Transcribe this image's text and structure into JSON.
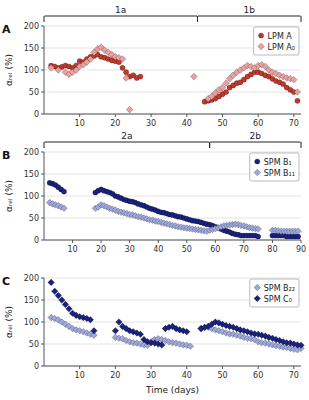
{
  "chart_data": [
    {
      "type": "scatter",
      "title": "A",
      "ylabel": "αᵣₑₗ (%)",
      "xlim": [
        0,
        72
      ],
      "ylim": [
        0,
        200
      ],
      "xticks": [
        10,
        20,
        30,
        40,
        50,
        60,
        70
      ],
      "yticks": [
        0,
        50,
        100,
        150,
        200
      ],
      "grid": true,
      "legend": "upper right",
      "annotations": [
        {
          "text": "1a",
          "x0": 0,
          "x1": 43
        },
        {
          "text": "1b",
          "x0": 43,
          "x1": 72
        }
      ],
      "series": [
        {
          "name": "LPM A",
          "color": "#c0392b",
          "marker": "circle",
          "x": [
            2,
            3,
            4,
            5,
            6,
            7,
            8,
            9,
            10,
            11,
            12,
            13,
            14,
            15,
            16,
            17,
            18,
            19,
            20,
            21,
            22,
            23,
            24,
            25,
            26,
            27,
            45,
            46,
            47,
            48,
            49,
            50,
            51,
            52,
            53,
            54,
            55,
            56,
            57,
            58,
            59,
            60,
            61,
            62,
            63,
            64,
            65,
            66,
            67,
            68,
            69,
            70,
            71
          ],
          "values": [
            110,
            108,
            105,
            107,
            110,
            108,
            105,
            110,
            120,
            118,
            125,
            130,
            132,
            135,
            130,
            128,
            125,
            122,
            120,
            118,
            105,
            95,
            85,
            88,
            82,
            85,
            28,
            30,
            32,
            35,
            40,
            45,
            50,
            60,
            65,
            70,
            72,
            78,
            85,
            90,
            95,
            95,
            92,
            88,
            85,
            80,
            75,
            72,
            68,
            60,
            55,
            50,
            30
          ]
        },
        {
          "name": "LPM A₀",
          "color": "#e8a0a0",
          "marker": "diamond",
          "x": [
            2,
            4,
            6,
            7,
            8,
            9,
            10,
            11,
            12,
            13,
            14,
            15,
            16,
            17,
            18,
            19,
            20,
            21,
            22,
            23,
            24,
            42,
            46,
            47,
            48,
            49,
            50,
            51,
            52,
            53,
            54,
            55,
            56,
            57,
            58,
            59,
            60,
            61,
            62,
            63,
            64,
            65,
            66,
            67,
            68,
            69,
            70,
            71
          ],
          "values": [
            105,
            100,
            95,
            90,
            95,
            100,
            108,
            112,
            118,
            125,
            140,
            148,
            152,
            145,
            140,
            135,
            130,
            128,
            125,
            82,
            10,
            85,
            35,
            40,
            48,
            55,
            60,
            70,
            80,
            88,
            95,
            100,
            105,
            110,
            108,
            105,
            110,
            112,
            108,
            100,
            95,
            92,
            88,
            85,
            82,
            80,
            78,
            50
          ]
        }
      ]
    },
    {
      "type": "scatter",
      "title": "B",
      "ylabel": "αᵣₑₗ (%)",
      "xlim": [
        0,
        90
      ],
      "ylim": [
        0,
        200
      ],
      "xticks": [
        10,
        20,
        30,
        40,
        50,
        60,
        70,
        80,
        90
      ],
      "yticks": [
        0,
        50,
        100,
        150,
        200
      ],
      "grid": true,
      "legend": "upper right",
      "annotations": [
        {
          "text": "2a",
          "x0": 0,
          "x1": 58
        },
        {
          "text": "2b",
          "x0": 58,
          "x1": 90
        }
      ],
      "series": [
        {
          "name": "SPM B₁",
          "color": "#1a237e",
          "marker": "circle",
          "x": [
            2,
            3,
            4,
            5,
            6,
            7,
            18,
            19,
            20,
            21,
            22,
            23,
            24,
            25,
            26,
            27,
            28,
            29,
            30,
            31,
            32,
            33,
            34,
            35,
            36,
            37,
            38,
            39,
            40,
            41,
            42,
            43,
            44,
            45,
            46,
            47,
            48,
            49,
            50,
            51,
            52,
            53,
            54,
            55,
            56,
            57,
            58,
            59,
            60,
            61,
            62,
            63,
            64,
            65,
            66,
            67,
            68,
            69,
            70,
            71,
            72,
            73,
            74,
            75,
            80,
            81,
            82,
            83,
            84,
            85,
            86,
            87,
            88,
            89
          ],
          "values": [
            130,
            128,
            125,
            120,
            115,
            110,
            108,
            112,
            115,
            112,
            110,
            108,
            105,
            100,
            98,
            95,
            92,
            90,
            88,
            87,
            85,
            82,
            80,
            78,
            75,
            72,
            70,
            68,
            65,
            63,
            62,
            60,
            58,
            57,
            55,
            53,
            52,
            50,
            48,
            46,
            44,
            43,
            42,
            40,
            38,
            36,
            35,
            33,
            30,
            28,
            25,
            22,
            20,
            18,
            15,
            13,
            12,
            10,
            10,
            10,
            10,
            10,
            10,
            8,
            10,
            10,
            10,
            10,
            10,
            8,
            8,
            8,
            8,
            8
          ]
        },
        {
          "name": "SPM B₁₁",
          "color": "#9fa8da",
          "marker": "diamond",
          "x": [
            2,
            3,
            4,
            5,
            6,
            7,
            18,
            19,
            20,
            21,
            22,
            23,
            24,
            25,
            26,
            27,
            28,
            29,
            30,
            31,
            32,
            33,
            34,
            35,
            36,
            37,
            38,
            39,
            40,
            41,
            42,
            43,
            44,
            45,
            46,
            47,
            48,
            49,
            50,
            51,
            52,
            53,
            54,
            55,
            56,
            57,
            58,
            59,
            60,
            61,
            62,
            63,
            64,
            65,
            66,
            67,
            68,
            69,
            70,
            71,
            72,
            73,
            74,
            75,
            80,
            81,
            82,
            83,
            84,
            85,
            86,
            87,
            88,
            89
          ],
          "values": [
            85,
            82,
            80,
            78,
            75,
            72,
            72,
            75,
            80,
            78,
            75,
            72,
            70,
            68,
            65,
            63,
            62,
            60,
            58,
            57,
            55,
            53,
            52,
            50,
            48,
            46,
            45,
            43,
            42,
            40,
            38,
            37,
            35,
            33,
            32,
            30,
            29,
            28,
            27,
            26,
            25,
            24,
            23,
            22,
            21,
            20,
            22,
            24,
            26,
            28,
            30,
            32,
            33,
            34,
            35,
            36,
            35,
            33,
            32,
            30,
            28,
            27,
            26,
            25,
            22,
            22,
            21,
            20,
            20,
            20,
            20,
            20,
            20,
            20
          ]
        }
      ]
    },
    {
      "type": "scatter",
      "title": "C",
      "ylabel": "αᵣₑₗ (%)",
      "xlabel": "Time (days)",
      "xlim": [
        0,
        72
      ],
      "ylim": [
        0,
        200
      ],
      "xticks": [
        10,
        20,
        30,
        40,
        50,
        60,
        70
      ],
      "yticks": [
        0,
        50,
        100,
        150,
        200
      ],
      "grid": true,
      "legend": "upper right",
      "series": [
        {
          "name": "SPM B₂₂",
          "color": "#9fa8da",
          "marker": "diamond",
          "x": [
            2,
            3,
            4,
            5,
            6,
            7,
            8,
            9,
            10,
            11,
            12,
            13,
            14,
            20,
            21,
            22,
            23,
            24,
            25,
            26,
            27,
            28,
            29,
            30,
            31,
            32,
            33,
            34,
            35,
            36,
            37,
            38,
            39,
            40,
            41,
            44,
            45,
            46,
            47,
            48,
            49,
            50,
            51,
            52,
            53,
            54,
            55,
            56,
            57,
            58,
            59,
            60,
            61,
            62,
            63,
            64,
            65,
            66,
            67,
            68,
            69,
            70,
            71,
            72
          ],
          "values": [
            110,
            108,
            105,
            100,
            95,
            90,
            85,
            82,
            80,
            78,
            75,
            72,
            70,
            65,
            63,
            62,
            58,
            55,
            53,
            52,
            50,
            48,
            47,
            55,
            60,
            62,
            60,
            58,
            55,
            53,
            52,
            50,
            48,
            47,
            45,
            85,
            87,
            88,
            85,
            82,
            80,
            78,
            75,
            73,
            72,
            70,
            68,
            65,
            63,
            62,
            60,
            55,
            53,
            52,
            50,
            48,
            46,
            45,
            43,
            42,
            40,
            38,
            37,
            40
          ]
        },
        {
          "name": "SPM C₀",
          "color": "#1a237e",
          "marker": "diamond",
          "x": [
            2,
            3,
            4,
            5,
            6,
            7,
            8,
            9,
            10,
            11,
            12,
            13,
            14,
            20,
            21,
            22,
            23,
            24,
            25,
            26,
            27,
            28,
            29,
            30,
            31,
            32,
            33,
            34,
            35,
            36,
            37,
            38,
            39,
            40,
            44,
            45,
            46,
            47,
            48,
            49,
            50,
            51,
            52,
            53,
            54,
            55,
            56,
            57,
            58,
            59,
            60,
            61,
            62,
            63,
            64,
            65,
            66,
            67,
            68,
            69,
            70,
            71,
            72
          ],
          "values": [
            190,
            170,
            160,
            150,
            140,
            130,
            120,
            115,
            112,
            110,
            108,
            105,
            80,
            80,
            100,
            90,
            85,
            80,
            78,
            75,
            72,
            60,
            55,
            53,
            52,
            50,
            48,
            85,
            88,
            90,
            85,
            82,
            80,
            78,
            85,
            88,
            90,
            95,
            100,
            98,
            95,
            92,
            90,
            88,
            85,
            82,
            80,
            78,
            75,
            73,
            72,
            70,
            68,
            65,
            63,
            60,
            58,
            55,
            53,
            52,
            50,
            48,
            47
          ]
        }
      ]
    }
  ]
}
